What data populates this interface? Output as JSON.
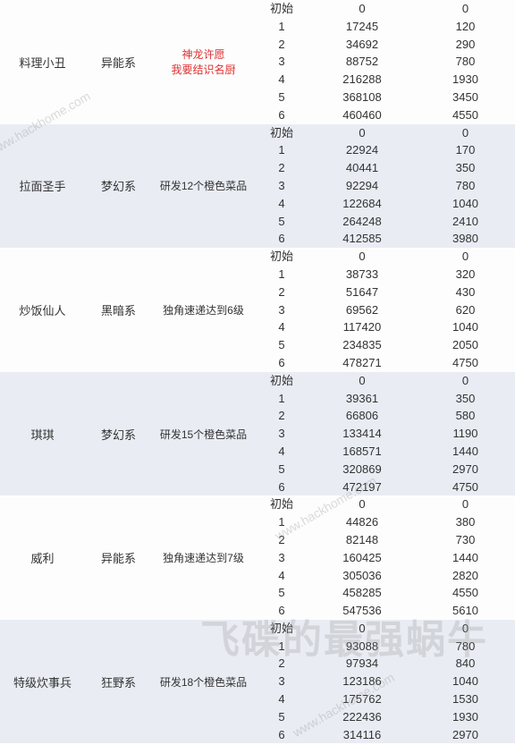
{
  "watermarks": {
    "url": "www.hackhome.com",
    "big": "飞碟的最强蜗牛"
  },
  "initial_label": "初始",
  "groups": [
    {
      "name": "料理小丑",
      "series": "异能系",
      "unlock": "神龙许愿\n我要结识名厨",
      "unlock_red": true,
      "alt": false,
      "rows": [
        {
          "lv": "初始",
          "v1": "0",
          "v2": "0"
        },
        {
          "lv": "1",
          "v1": "17245",
          "v2": "120"
        },
        {
          "lv": "2",
          "v1": "34692",
          "v2": "290"
        },
        {
          "lv": "3",
          "v1": "88752",
          "v2": "780"
        },
        {
          "lv": "4",
          "v1": "216288",
          "v2": "1930"
        },
        {
          "lv": "5",
          "v1": "368108",
          "v2": "3450"
        },
        {
          "lv": "6",
          "v1": "460460",
          "v2": "4550"
        }
      ]
    },
    {
      "name": "拉面圣手",
      "series": "梦幻系",
      "unlock": "研发12个橙色菜品",
      "unlock_red": false,
      "alt": true,
      "rows": [
        {
          "lv": "初始",
          "v1": "0",
          "v2": "0"
        },
        {
          "lv": "1",
          "v1": "22924",
          "v2": "170"
        },
        {
          "lv": "2",
          "v1": "40441",
          "v2": "350"
        },
        {
          "lv": "3",
          "v1": "92294",
          "v2": "780"
        },
        {
          "lv": "4",
          "v1": "122684",
          "v2": "1040"
        },
        {
          "lv": "5",
          "v1": "264248",
          "v2": "2410"
        },
        {
          "lv": "6",
          "v1": "412585",
          "v2": "3980"
        }
      ]
    },
    {
      "name": "炒饭仙人",
      "series": "黑暗系",
      "unlock": "独角速递达到6级",
      "unlock_red": false,
      "alt": false,
      "rows": [
        {
          "lv": "初始",
          "v1": "0",
          "v2": "0"
        },
        {
          "lv": "1",
          "v1": "38733",
          "v2": "320"
        },
        {
          "lv": "2",
          "v1": "51647",
          "v2": "430"
        },
        {
          "lv": "3",
          "v1": "69562",
          "v2": "620"
        },
        {
          "lv": "4",
          "v1": "117420",
          "v2": "1040"
        },
        {
          "lv": "5",
          "v1": "234835",
          "v2": "2050"
        },
        {
          "lv": "6",
          "v1": "478271",
          "v2": "4750"
        }
      ]
    },
    {
      "name": "琪琪",
      "series": "梦幻系",
      "unlock": "研发15个橙色菜品",
      "unlock_red": false,
      "alt": true,
      "rows": [
        {
          "lv": "初始",
          "v1": "0",
          "v2": "0"
        },
        {
          "lv": "1",
          "v1": "39361",
          "v2": "350"
        },
        {
          "lv": "2",
          "v1": "66806",
          "v2": "580"
        },
        {
          "lv": "3",
          "v1": "133414",
          "v2": "1190"
        },
        {
          "lv": "4",
          "v1": "168571",
          "v2": "1440"
        },
        {
          "lv": "5",
          "v1": "320869",
          "v2": "2970"
        },
        {
          "lv": "6",
          "v1": "472197",
          "v2": "4750"
        }
      ]
    },
    {
      "name": "威利",
      "series": "异能系",
      "unlock": "独角速递达到7级",
      "unlock_red": false,
      "alt": false,
      "rows": [
        {
          "lv": "初始",
          "v1": "0",
          "v2": "0"
        },
        {
          "lv": "1",
          "v1": "44826",
          "v2": "380"
        },
        {
          "lv": "2",
          "v1": "82148",
          "v2": "730"
        },
        {
          "lv": "3",
          "v1": "160425",
          "v2": "1440"
        },
        {
          "lv": "4",
          "v1": "305036",
          "v2": "2820"
        },
        {
          "lv": "5",
          "v1": "458285",
          "v2": "4550"
        },
        {
          "lv": "6",
          "v1": "547536",
          "v2": "5610"
        }
      ]
    },
    {
      "name": "特级炊事兵",
      "series": "狂野系",
      "unlock": "研发18个橙色菜品",
      "unlock_red": false,
      "alt": true,
      "rows": [
        {
          "lv": "初始",
          "v1": "0",
          "v2": "0"
        },
        {
          "lv": "1",
          "v1": "93088",
          "v2": "780"
        },
        {
          "lv": "2",
          "v1": "97934",
          "v2": "840"
        },
        {
          "lv": "3",
          "v1": "123186",
          "v2": "1040"
        },
        {
          "lv": "4",
          "v1": "175762",
          "v2": "1530"
        },
        {
          "lv": "5",
          "v1": "222436",
          "v2": "1930"
        },
        {
          "lv": "6",
          "v1": "314116",
          "v2": "2970"
        }
      ]
    }
  ]
}
